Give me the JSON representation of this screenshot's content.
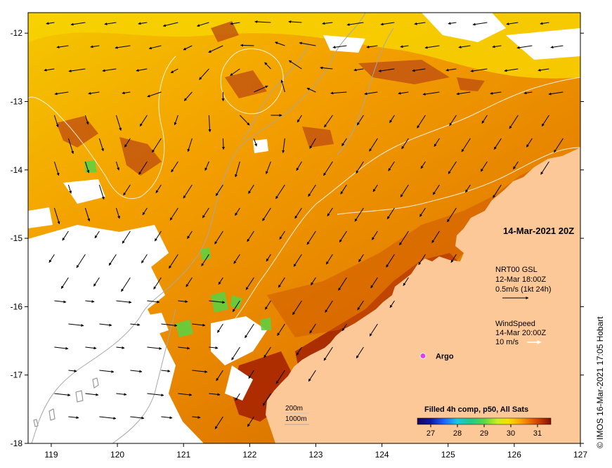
{
  "map": {
    "timestamp": "14-Mar-2021 20Z",
    "x_axis": {
      "min": 118.65,
      "max": 127,
      "ticks": [
        119,
        120,
        121,
        122,
        123,
        124,
        125,
        126,
        127
      ]
    },
    "y_axis": {
      "min": -18,
      "max": -11.7,
      "ticks": [
        -12,
        -13,
        -14,
        -15,
        -16,
        -17,
        -18
      ]
    },
    "current_legend": {
      "title": "NRT00 GSL",
      "time": "12-Mar 18:00Z",
      "scale": "0.5m/s (1kt 24h)"
    },
    "wind_legend": {
      "title": "WindSpeed",
      "time": "14-Mar 20:00Z",
      "scale": "10 m/s"
    },
    "argo": {
      "label": "Argo",
      "lon": 124.62,
      "lat": -16.72,
      "color": "#e040e0"
    },
    "isobath_legend": {
      "line1": "200m",
      "line2": "1000m"
    },
    "colorbar": {
      "title": "Filled 4h comp, p50, All Sats",
      "min": 26.5,
      "max": 31.5,
      "ticks": [
        27,
        28,
        29,
        30,
        31
      ]
    },
    "credit": "© IMOS 16-Mar-2021 17:05 Hobart",
    "colors": {
      "land": "#fdc898",
      "cloud": "#ffffff",
      "isobath": "#a8a8a8"
    }
  }
}
